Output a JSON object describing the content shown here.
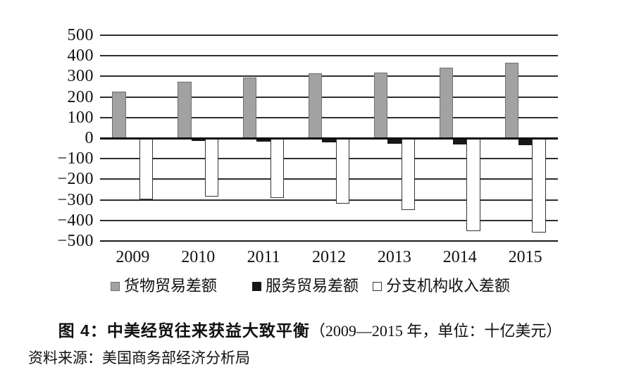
{
  "chart_data": {
    "type": "bar",
    "title": "图 4：中美经贸往来获益大致平衡",
    "title_suffix": "（2009—2015 年，单位：十亿美元）",
    "source": "资料来源：美国商务部经济分析局",
    "categories": [
      "2009",
      "2010",
      "2011",
      "2012",
      "2013",
      "2014",
      "2015"
    ],
    "series": [
      {
        "key": "goods_trade_balance",
        "name": "货物贸易差额",
        "color": "#a2a2a2",
        "values": [
          227,
          273,
          295,
          315,
          320,
          344,
          367
        ]
      },
      {
        "key": "services_trade_balance",
        "name": "服务贸易差额",
        "color": "#171717",
        "values": [
          -8,
          -13,
          -17,
          -21,
          -27,
          -30,
          -34
        ]
      },
      {
        "key": "branch_income_balance",
        "name": "分支机构收入差额",
        "color": "#ffffff",
        "values": [
          -297,
          -284,
          -291,
          -318,
          -350,
          -452,
          -458
        ]
      }
    ],
    "ylim": [
      -500,
      500
    ],
    "ytick_step": 100,
    "yticks": [
      "500",
      "400",
      "300",
      "200",
      "100",
      "0",
      "−100",
      "−200",
      "−300",
      "−400",
      "−500"
    ],
    "grid": true,
    "legend_position": "bottom"
  }
}
